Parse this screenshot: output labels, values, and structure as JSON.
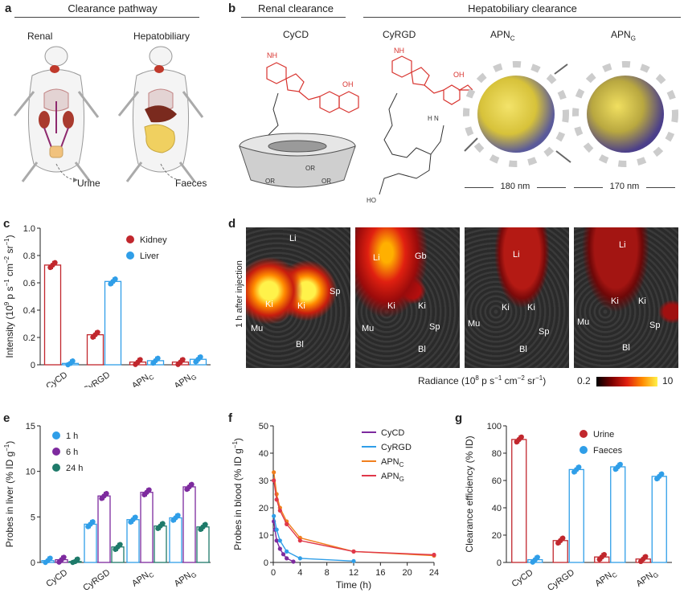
{
  "panels": {
    "a": {
      "letter": "a",
      "heading": "Clearance pathway",
      "renal_label": "Renal",
      "hepato_label": "Hepatobiliary",
      "urine": "Urine",
      "faeces": "Faeces"
    },
    "b": {
      "letter": "b",
      "renal_heading": "Renal clearance",
      "hepato_heading": "Hepatobiliary clearance",
      "probes": [
        "CyCD",
        "CyRGD",
        "APN",
        "APN"
      ],
      "probe_subs": [
        "",
        "",
        "C",
        "G"
      ],
      "size_c": "180 nm",
      "size_g": "170 nm",
      "chem": {
        "nh2": "NH",
        "nh2_sub": "2",
        "oh": "OH",
        "or": "OR",
        "ho": "HO",
        "nh": "NH",
        "h2n": "H N",
        "n": "N"
      }
    },
    "c": {
      "letter": "c"
    },
    "d": {
      "letter": "d",
      "side_label": "1 h after injection",
      "panels": [
        [
          "Li",
          "Ki",
          "Ki",
          "Sp",
          "Mu",
          "Bl"
        ],
        [
          "Li",
          "Gb",
          "Ki",
          "Ki",
          "Mu",
          "Sp",
          "Bl"
        ],
        [
          "Li",
          "Ki",
          "Ki",
          "Mu",
          "Sp",
          "Bl"
        ],
        [
          "Li",
          "Ki",
          "Ki",
          "Mu",
          "Sp",
          "Bl"
        ]
      ],
      "scale_label": "Radiance (10",
      "scale_label_exp": "8",
      "scale_label_rest": " p s",
      "scale_min": "0.2",
      "scale_max": "10"
    },
    "e": {
      "letter": "e"
    },
    "f": {
      "letter": "f"
    },
    "g": {
      "letter": "g"
    }
  },
  "colors": {
    "kidney": "#c1272d",
    "liver": "#2f9ee8",
    "h1": "#2f9ee8",
    "h6": "#7d2a9e",
    "h24": "#1e7a6a",
    "cycd": "#7d2a9e",
    "cyrgd": "#2f9ee8",
    "apnc": "#f07f1e",
    "apng": "#e0384a",
    "urine": "#c1272d",
    "faeces": "#2f9ee8",
    "chem_red": "#d8332e"
  },
  "chart_data": [
    {
      "id": "c",
      "type": "bar",
      "ylabel": "Intensity (10",
      "ylabel_exp": "9",
      "ylabel_rest": " p s",
      "ylim": [
        0,
        1.0
      ],
      "yticks": [
        "0",
        "0.2",
        "0.4",
        "0.6",
        "0.8",
        "1.0"
      ],
      "categories": [
        "CyCD",
        "CyRGD",
        "APN",
        "APN"
      ],
      "category_subs": [
        "",
        "",
        "C",
        "G"
      ],
      "series": [
        {
          "name": "Kidney",
          "values": [
            0.73,
            0.22,
            0.02,
            0.02
          ]
        },
        {
          "name": "Liver",
          "values": [
            0.01,
            0.61,
            0.03,
            0.04
          ]
        }
      ]
    },
    {
      "id": "e",
      "type": "bar",
      "ylabel": "Probes in liver (% ID g",
      "ylim": [
        0,
        15
      ],
      "yticks": [
        "0",
        "5",
        "10",
        "15"
      ],
      "categories": [
        "CyCD",
        "CyRGD",
        "APN",
        "APN"
      ],
      "category_subs": [
        "",
        "",
        "C",
        "G"
      ],
      "series": [
        {
          "name": "1 h",
          "values": [
            0.2,
            4.2,
            4.7,
            4.9
          ]
        },
        {
          "name": "6 h",
          "values": [
            0.3,
            7.3,
            7.7,
            8.3
          ]
        },
        {
          "name": "24 h",
          "values": [
            0.1,
            1.7,
            4.0,
            3.9
          ]
        }
      ]
    },
    {
      "id": "f",
      "type": "line",
      "xlabel": "Time (h)",
      "ylabel": "Probes in blood (% ID g",
      "xlim": [
        0,
        24
      ],
      "ylim": [
        0,
        50
      ],
      "xticks": [
        "0",
        "4",
        "8",
        "12",
        "16",
        "20",
        "24"
      ],
      "yticks": [
        "0",
        "10",
        "20",
        "30",
        "40",
        "50"
      ],
      "series": [
        {
          "name": "CyCD",
          "sub": "",
          "x": [
            0.08,
            0.25,
            0.5,
            1,
            1.5,
            2,
            3
          ],
          "y": [
            15,
            12,
            8,
            5,
            3,
            1.5,
            0.3
          ]
        },
        {
          "name": "CyRGD",
          "sub": "",
          "x": [
            0.08,
            0.5,
            1,
            2,
            4,
            12
          ],
          "y": [
            17,
            12,
            8,
            4,
            1.5,
            0.5
          ]
        },
        {
          "name": "APN",
          "sub": "C",
          "x": [
            0.08,
            0.5,
            1,
            2,
            4,
            12,
            24
          ],
          "y": [
            33,
            25,
            20,
            15,
            9,
            4,
            2.5
          ]
        },
        {
          "name": "APN",
          "sub": "G",
          "x": [
            0.08,
            0.5,
            1,
            2,
            4,
            12,
            24
          ],
          "y": [
            30,
            23,
            19,
            14,
            8,
            4,
            2.8
          ]
        }
      ]
    },
    {
      "id": "g",
      "type": "bar",
      "ylabel": "Clearance efficiency (% ID)",
      "ylim": [
        0,
        100
      ],
      "yticks": [
        "0",
        "20",
        "40",
        "60",
        "80",
        "100"
      ],
      "categories": [
        "CyCD",
        "CyRGD",
        "APN",
        "APN"
      ],
      "category_subs": [
        "",
        "",
        "C",
        "G"
      ],
      "series": [
        {
          "name": "Urine",
          "values": [
            90,
            16,
            4,
            2.5
          ]
        },
        {
          "name": "Faeces",
          "values": [
            2,
            68,
            70,
            63
          ]
        }
      ]
    }
  ]
}
